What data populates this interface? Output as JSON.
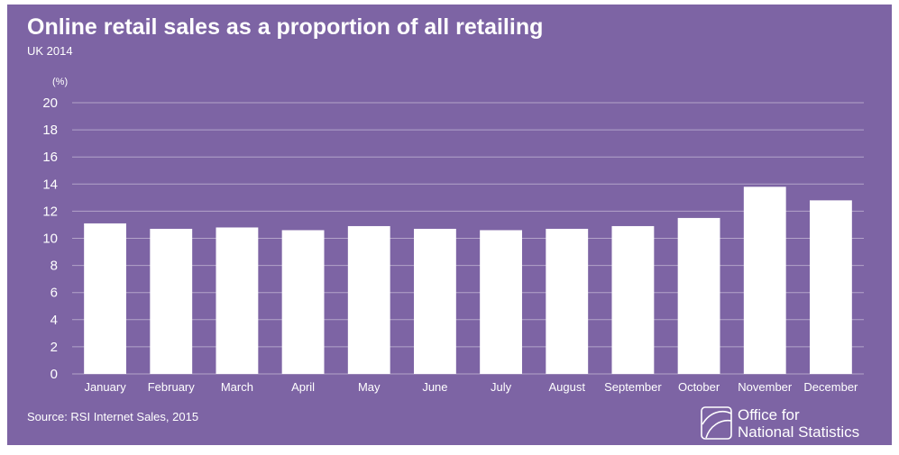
{
  "chart_data": {
    "type": "bar",
    "title": "Online retail sales as a proportion of all retailing",
    "subtitle": "UK 2014",
    "ylabel": "(%)",
    "xlabel": "",
    "ylim": [
      0,
      20
    ],
    "yticks": [
      0,
      2,
      4,
      6,
      8,
      10,
      12,
      14,
      16,
      18,
      20
    ],
    "grid": true,
    "categories": [
      "January",
      "February",
      "March",
      "April",
      "May",
      "June",
      "July",
      "August",
      "September",
      "October",
      "November",
      "December"
    ],
    "values": [
      11.1,
      10.7,
      10.8,
      10.6,
      10.9,
      10.7,
      10.6,
      10.7,
      10.9,
      11.5,
      13.8,
      12.8
    ],
    "source": "Source: RSI Internet Sales, 2015"
  },
  "logo": {
    "name": "ons-logo-icon",
    "line1": "Office for",
    "line2": "National Statistics"
  },
  "colors": {
    "background": "#7d64a4",
    "bar": "#ffffff",
    "grid": "#b3a3c9",
    "text": "#ffffff"
  }
}
